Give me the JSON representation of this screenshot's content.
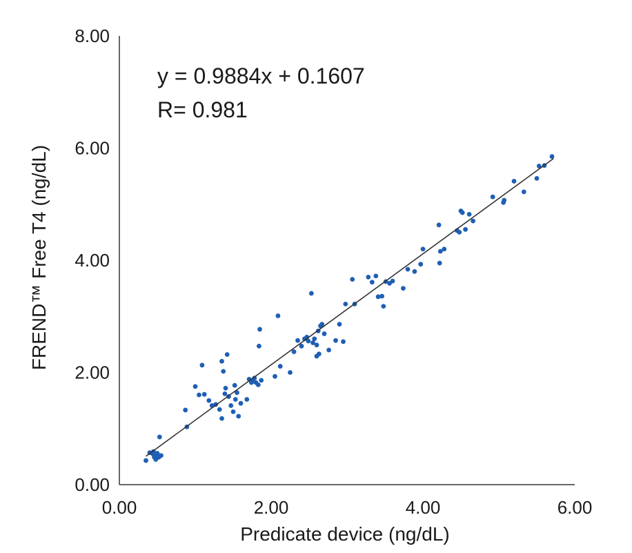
{
  "chart_data": {
    "type": "scatter",
    "xlabel": "Predicate device (ng/dL)",
    "ylabel": "FREND™ Free T4 (ng/dL)",
    "xlim": [
      0,
      6
    ],
    "ylim": [
      0,
      8
    ],
    "xticks": [
      "0.00",
      "2.00",
      "4.00",
      "6.00"
    ],
    "yticks": [
      "0.00",
      "2.00",
      "4.00",
      "6.00",
      "8.00"
    ],
    "grid": false,
    "legend": "none",
    "marker_color": "#1f5fb4",
    "line_color": "#333333",
    "annotations": {
      "equation": "y = 0.9884x + 0.1607",
      "r": "R= 0.981"
    },
    "fit": {
      "slope": 0.9884,
      "intercept": 0.1607,
      "x_range": [
        0.35,
        5.72
      ]
    },
    "points": [
      [
        0.35,
        0.43
      ],
      [
        0.4,
        0.57
      ],
      [
        0.44,
        0.55
      ],
      [
        0.45,
        0.59
      ],
      [
        0.46,
        0.49
      ],
      [
        0.48,
        0.45
      ],
      [
        0.49,
        0.53
      ],
      [
        0.5,
        0.56
      ],
      [
        0.52,
        0.49
      ],
      [
        0.53,
        0.85
      ],
      [
        0.55,
        0.52
      ],
      [
        0.87,
        1.33
      ],
      [
        0.89,
        1.03
      ],
      [
        1.0,
        1.75
      ],
      [
        1.05,
        1.6
      ],
      [
        1.09,
        2.13
      ],
      [
        1.12,
        1.61
      ],
      [
        1.18,
        1.5
      ],
      [
        1.22,
        1.41
      ],
      [
        1.27,
        1.43
      ],
      [
        1.32,
        1.34
      ],
      [
        1.35,
        1.18
      ],
      [
        1.35,
        2.2
      ],
      [
        1.37,
        2.02
      ],
      [
        1.39,
        1.62
      ],
      [
        1.4,
        1.72
      ],
      [
        1.42,
        2.32
      ],
      [
        1.44,
        1.57
      ],
      [
        1.47,
        1.41
      ],
      [
        1.5,
        1.3
      ],
      [
        1.52,
        1.77
      ],
      [
        1.53,
        1.52
      ],
      [
        1.55,
        1.64
      ],
      [
        1.57,
        1.22
      ],
      [
        1.6,
        1.45
      ],
      [
        1.68,
        1.52
      ],
      [
        1.71,
        1.88
      ],
      [
        1.74,
        1.82
      ],
      [
        1.76,
        1.85
      ],
      [
        1.78,
        1.9
      ],
      [
        1.8,
        1.82
      ],
      [
        1.83,
        1.78
      ],
      [
        1.84,
        2.47
      ],
      [
        1.85,
        2.77
      ],
      [
        1.87,
        1.86
      ],
      [
        2.05,
        1.93
      ],
      [
        2.09,
        3.01
      ],
      [
        2.12,
        2.11
      ],
      [
        2.25,
        2.0
      ],
      [
        2.3,
        2.37
      ],
      [
        2.35,
        2.57
      ],
      [
        2.4,
        2.47
      ],
      [
        2.44,
        2.6
      ],
      [
        2.47,
        2.63
      ],
      [
        2.49,
        2.56
      ],
      [
        2.53,
        3.41
      ],
      [
        2.55,
        2.53
      ],
      [
        2.57,
        2.6
      ],
      [
        2.6,
        2.29
      ],
      [
        2.6,
        2.49
      ],
      [
        2.62,
        2.74
      ],
      [
        2.63,
        2.33
      ],
      [
        2.65,
        2.83
      ],
      [
        2.67,
        2.86
      ],
      [
        2.7,
        2.69
      ],
      [
        2.76,
        2.4
      ],
      [
        2.85,
        2.57
      ],
      [
        2.9,
        2.86
      ],
      [
        2.95,
        2.55
      ],
      [
        2.98,
        3.22
      ],
      [
        3.07,
        3.66
      ],
      [
        3.1,
        3.22
      ],
      [
        3.28,
        3.7
      ],
      [
        3.33,
        3.61
      ],
      [
        3.38,
        3.72
      ],
      [
        3.41,
        3.35
      ],
      [
        3.46,
        3.36
      ],
      [
        3.48,
        3.18
      ],
      [
        3.51,
        3.62
      ],
      [
        3.56,
        3.59
      ],
      [
        3.6,
        3.63
      ],
      [
        3.74,
        3.5
      ],
      [
        3.8,
        3.84
      ],
      [
        3.89,
        3.8
      ],
      [
        3.97,
        3.93
      ],
      [
        4.0,
        4.2
      ],
      [
        4.21,
        4.63
      ],
      [
        4.22,
        3.95
      ],
      [
        4.23,
        4.16
      ],
      [
        4.28,
        4.2
      ],
      [
        4.45,
        4.53
      ],
      [
        4.48,
        4.5
      ],
      [
        4.5,
        4.88
      ],
      [
        4.52,
        4.85
      ],
      [
        4.56,
        4.55
      ],
      [
        4.61,
        4.82
      ],
      [
        4.66,
        4.7
      ],
      [
        4.92,
        5.13
      ],
      [
        5.06,
        5.03
      ],
      [
        5.07,
        5.07
      ],
      [
        5.2,
        5.41
      ],
      [
        5.33,
        5.22
      ],
      [
        5.5,
        5.46
      ],
      [
        5.53,
        5.68
      ],
      [
        5.6,
        5.69
      ],
      [
        5.7,
        5.85
      ]
    ]
  }
}
